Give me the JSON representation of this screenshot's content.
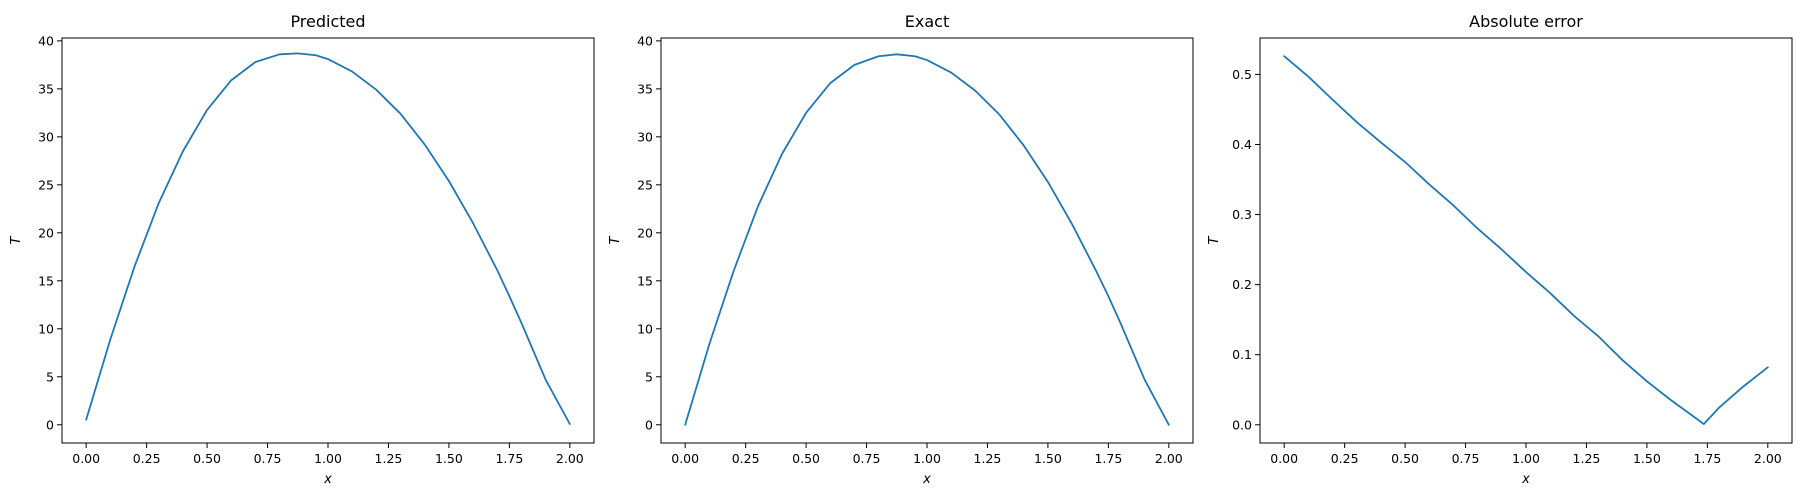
{
  "figure": {
    "line_color": "#1f77b4"
  },
  "chart_data": [
    {
      "type": "line",
      "title": "Predicted",
      "xlabel": "x",
      "ylabel": "T",
      "xlim": [
        -0.1,
        2.1
      ],
      "ylim": [
        -1.9,
        40.3
      ],
      "xticks": [
        0.0,
        0.25,
        0.5,
        0.75,
        1.0,
        1.25,
        1.5,
        1.75,
        2.0
      ],
      "xtick_labels": [
        "0.00",
        "0.25",
        "0.50",
        "0.75",
        "1.00",
        "1.25",
        "1.50",
        "1.75",
        "2.00"
      ],
      "yticks": [
        0,
        5,
        10,
        15,
        20,
        25,
        30,
        35,
        40
      ],
      "ytick_labels": [
        "0",
        "5",
        "10",
        "15",
        "20",
        "25",
        "30",
        "35",
        "40"
      ],
      "grid": false,
      "series": [
        {
          "x": [
            0.0,
            0.1,
            0.2,
            0.3,
            0.4,
            0.5,
            0.6,
            0.7,
            0.8,
            0.875,
            0.95,
            1.0,
            1.1,
            1.2,
            1.3,
            1.4,
            1.5,
            1.6,
            1.7,
            1.75,
            1.8,
            1.9,
            2.0
          ],
          "y": [
            0.53,
            8.9,
            16.5,
            23.1,
            28.5,
            32.8,
            35.9,
            37.8,
            38.6,
            38.7,
            38.5,
            38.1,
            36.8,
            34.9,
            32.4,
            29.2,
            25.4,
            21.0,
            16.1,
            13.4,
            10.6,
            4.7,
            0.08
          ]
        }
      ]
    },
    {
      "type": "line",
      "title": "Exact",
      "xlabel": "x",
      "ylabel": "T",
      "xlim": [
        -0.1,
        2.1
      ],
      "ylim": [
        -1.9,
        40.3
      ],
      "xticks": [
        0.0,
        0.25,
        0.5,
        0.75,
        1.0,
        1.25,
        1.5,
        1.75,
        2.0
      ],
      "xtick_labels": [
        "0.00",
        "0.25",
        "0.50",
        "0.75",
        "1.00",
        "1.25",
        "1.50",
        "1.75",
        "2.00"
      ],
      "yticks": [
        0,
        5,
        10,
        15,
        20,
        25,
        30,
        35,
        40
      ],
      "ytick_labels": [
        "0",
        "5",
        "10",
        "15",
        "20",
        "25",
        "30",
        "35",
        "40"
      ],
      "grid": false,
      "series": [
        {
          "x": [
            0.0,
            0.1,
            0.2,
            0.3,
            0.4,
            0.5,
            0.6,
            0.7,
            0.8,
            0.875,
            0.95,
            1.0,
            1.1,
            1.2,
            1.3,
            1.4,
            1.5,
            1.6,
            1.7,
            1.75,
            1.8,
            1.9,
            2.0
          ],
          "y": [
            0.0,
            8.4,
            16.0,
            22.7,
            28.2,
            32.5,
            35.6,
            37.5,
            38.4,
            38.6,
            38.4,
            38.0,
            36.7,
            34.8,
            32.3,
            29.1,
            25.3,
            20.9,
            16.0,
            13.4,
            10.6,
            4.7,
            0.0
          ]
        }
      ]
    },
    {
      "type": "line",
      "title": "Absolute error",
      "xlabel": "x",
      "ylabel": "T",
      "xlim": [
        -0.1,
        2.1
      ],
      "ylim": [
        -0.026,
        0.552
      ],
      "xticks": [
        0.0,
        0.25,
        0.5,
        0.75,
        1.0,
        1.25,
        1.5,
        1.75,
        2.0
      ],
      "xtick_labels": [
        "0.00",
        "0.25",
        "0.50",
        "0.75",
        "1.00",
        "1.25",
        "1.50",
        "1.75",
        "2.00"
      ],
      "yticks": [
        0.0,
        0.1,
        0.2,
        0.3,
        0.4,
        0.5
      ],
      "ytick_labels": [
        "0.0",
        "0.1",
        "0.2",
        "0.3",
        "0.4",
        "0.5"
      ],
      "grid": false,
      "series": [
        {
          "x": [
            0.0,
            0.1,
            0.2,
            0.3,
            0.4,
            0.5,
            0.6,
            0.7,
            0.8,
            0.9,
            1.0,
            1.1,
            1.2,
            1.3,
            1.4,
            1.5,
            1.6,
            1.7,
            1.735,
            1.8,
            1.9,
            2.0
          ],
          "y": [
            0.526,
            0.497,
            0.464,
            0.432,
            0.403,
            0.375,
            0.343,
            0.313,
            0.28,
            0.25,
            0.218,
            0.188,
            0.155,
            0.126,
            0.092,
            0.062,
            0.035,
            0.01,
            0.001,
            0.025,
            0.055,
            0.082
          ]
        }
      ]
    }
  ]
}
